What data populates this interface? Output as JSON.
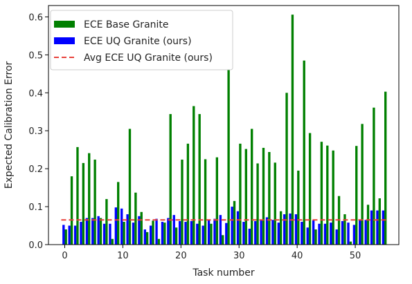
{
  "chart_data": {
    "type": "bar",
    "xlabel": "Task number",
    "ylabel": "Expected Calibration Error",
    "xlim": [
      -2.8,
      57.5
    ],
    "ylim": [
      0,
      0.63
    ],
    "xticks": [
      0,
      10,
      20,
      30,
      40,
      50
    ],
    "yticks": [
      0.0,
      0.1,
      0.2,
      0.3,
      0.4,
      0.5,
      0.6
    ],
    "legend_position": "upper-left",
    "tasks": [
      0,
      1,
      2,
      3,
      4,
      5,
      6,
      7,
      8,
      9,
      10,
      11,
      12,
      13,
      14,
      15,
      16,
      17,
      18,
      19,
      20,
      21,
      22,
      23,
      24,
      25,
      26,
      27,
      28,
      29,
      30,
      31,
      32,
      33,
      34,
      35,
      36,
      37,
      38,
      39,
      40,
      41,
      42,
      43,
      44,
      45,
      46,
      47,
      48,
      49,
      50,
      51,
      52,
      53,
      54,
      55
    ],
    "series": [
      {
        "name": "ECE Base Granite",
        "color": "#008000",
        "kind": "bar",
        "values": [
          0.04,
          0.18,
          0.257,
          0.215,
          0.241,
          0.224,
          0.07,
          0.12,
          0.015,
          0.165,
          0.06,
          0.305,
          0.137,
          0.086,
          0.033,
          0.063,
          0.015,
          0.058,
          0.344,
          0.045,
          0.224,
          0.266,
          0.365,
          0.344,
          0.225,
          0.055,
          0.23,
          0.025,
          0.462,
          0.115,
          0.266,
          0.252,
          0.305,
          0.214,
          0.255,
          0.244,
          0.216,
          0.088,
          0.4,
          0.606,
          0.195,
          0.485,
          0.294,
          0.04,
          0.271,
          0.261,
          0.248,
          0.128,
          0.08,
          0.008,
          0.26,
          0.318,
          0.105,
          0.361,
          0.122,
          0.403
        ]
      },
      {
        "name": "ECE UQ Granite (ours)",
        "color": "#0000ff",
        "kind": "bar",
        "values": [
          0.052,
          0.05,
          0.05,
          0.06,
          0.07,
          0.07,
          0.075,
          0.055,
          0.055,
          0.098,
          0.095,
          0.08,
          0.058,
          0.075,
          0.04,
          0.05,
          0.068,
          0.06,
          0.07,
          0.078,
          0.062,
          0.06,
          0.062,
          0.055,
          0.05,
          0.065,
          0.068,
          0.078,
          0.057,
          0.1,
          0.088,
          0.06,
          0.042,
          0.062,
          0.065,
          0.072,
          0.065,
          0.058,
          0.08,
          0.082,
          0.08,
          0.06,
          0.045,
          0.064,
          0.055,
          0.055,
          0.058,
          0.04,
          0.062,
          0.058,
          0.052,
          0.065,
          0.065,
          0.09,
          0.09,
          0.09
        ]
      },
      {
        "name": "Avg ECE UQ Granite (ours)",
        "color": "#e8403a",
        "kind": "hline",
        "value": 0.065
      }
    ]
  }
}
